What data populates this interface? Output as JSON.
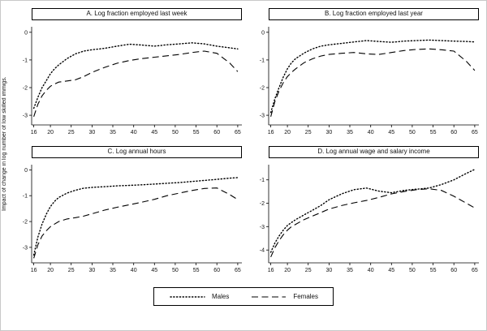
{
  "figure": {
    "ylabel": "Impact of change in log number of low skilled immigs.",
    "line_color": "#000000",
    "background": "#ffffff"
  },
  "chart_data": {
    "type": "line",
    "layout": "2x2 small-multiple panels, x axis = age 16-65, shared legend bottom center, grid off",
    "xlim": [
      15.5,
      66
    ],
    "xticks": [
      16,
      20,
      25,
      30,
      35,
      40,
      45,
      50,
      55,
      60,
      65
    ],
    "x": [
      16,
      17,
      18,
      19,
      20,
      21,
      22,
      24,
      26,
      28,
      30,
      33,
      36,
      39,
      42,
      45,
      48,
      51,
      54,
      57,
      60,
      63,
      65
    ],
    "legend": [
      {
        "name": "Males",
        "style": "dotted"
      },
      {
        "name": "Females",
        "style": "dashed"
      }
    ],
    "panels": [
      {
        "title": "A. Log fraction employed last week",
        "yticks": [
          0,
          -1,
          -2,
          -3
        ],
        "ylim": [
          -3.35,
          0.2
        ],
        "series": {
          "males": [
            -2.75,
            -2.35,
            -2.0,
            -1.75,
            -1.5,
            -1.32,
            -1.18,
            -0.95,
            -0.78,
            -0.68,
            -0.63,
            -0.58,
            -0.5,
            -0.43,
            -0.46,
            -0.5,
            -0.45,
            -0.42,
            -0.38,
            -0.42,
            -0.5,
            -0.56,
            -0.6
          ],
          "females": [
            -3.05,
            -2.6,
            -2.3,
            -2.1,
            -1.95,
            -1.87,
            -1.8,
            -1.76,
            -1.72,
            -1.6,
            -1.45,
            -1.27,
            -1.12,
            -1.02,
            -0.95,
            -0.9,
            -0.85,
            -0.8,
            -0.73,
            -0.68,
            -0.76,
            -1.1,
            -1.42
          ]
        }
      },
      {
        "title": "B. Log fraction employed last year",
        "yticks": [
          0,
          -1,
          -2,
          -3
        ],
        "ylim": [
          -3.35,
          0.2
        ],
        "series": {
          "males": [
            -2.9,
            -2.4,
            -2.0,
            -1.62,
            -1.32,
            -1.1,
            -0.95,
            -0.75,
            -0.6,
            -0.5,
            -0.45,
            -0.4,
            -0.35,
            -0.3,
            -0.33,
            -0.36,
            -0.32,
            -0.3,
            -0.28,
            -0.3,
            -0.32,
            -0.33,
            -0.35
          ],
          "females": [
            -3.05,
            -2.5,
            -2.12,
            -1.82,
            -1.6,
            -1.45,
            -1.32,
            -1.1,
            -0.96,
            -0.86,
            -0.8,
            -0.76,
            -0.73,
            -0.78,
            -0.8,
            -0.73,
            -0.66,
            -0.62,
            -0.6,
            -0.63,
            -0.68,
            -1.05,
            -1.38
          ]
        }
      },
      {
        "title": "C. Log annual hours",
        "yticks": [
          0,
          -1,
          -2,
          -3
        ],
        "ylim": [
          -3.6,
          0.2
        ],
        "series": {
          "males": [
            -3.3,
            -2.6,
            -2.1,
            -1.72,
            -1.42,
            -1.22,
            -1.07,
            -0.9,
            -0.79,
            -0.71,
            -0.68,
            -0.65,
            -0.62,
            -0.6,
            -0.58,
            -0.55,
            -0.52,
            -0.49,
            -0.45,
            -0.41,
            -0.37,
            -0.32,
            -0.3
          ],
          "females": [
            -3.42,
            -2.9,
            -2.56,
            -2.36,
            -2.2,
            -2.1,
            -2.0,
            -1.9,
            -1.85,
            -1.79,
            -1.7,
            -1.56,
            -1.45,
            -1.35,
            -1.25,
            -1.14,
            -1.0,
            -0.9,
            -0.8,
            -0.72,
            -0.7,
            -0.95,
            -1.15
          ]
        }
      },
      {
        "title": "D. Log annual wage and salary income",
        "yticks": [
          -1,
          -2,
          -3,
          -4
        ],
        "ylim": [
          -4.55,
          -0.35
        ],
        "series": {
          "males": [
            -4.1,
            -3.7,
            -3.4,
            -3.15,
            -2.95,
            -2.82,
            -2.7,
            -2.5,
            -2.3,
            -2.1,
            -1.85,
            -1.6,
            -1.42,
            -1.35,
            -1.48,
            -1.55,
            -1.45,
            -1.4,
            -1.35,
            -1.2,
            -1.0,
            -0.72,
            -0.55
          ],
          "females": [
            -4.3,
            -3.9,
            -3.6,
            -3.35,
            -3.15,
            -3.0,
            -2.9,
            -2.7,
            -2.55,
            -2.4,
            -2.25,
            -2.1,
            -1.98,
            -1.88,
            -1.75,
            -1.6,
            -1.5,
            -1.42,
            -1.38,
            -1.45,
            -1.7,
            -2.0,
            -2.2
          ]
        }
      }
    ]
  }
}
